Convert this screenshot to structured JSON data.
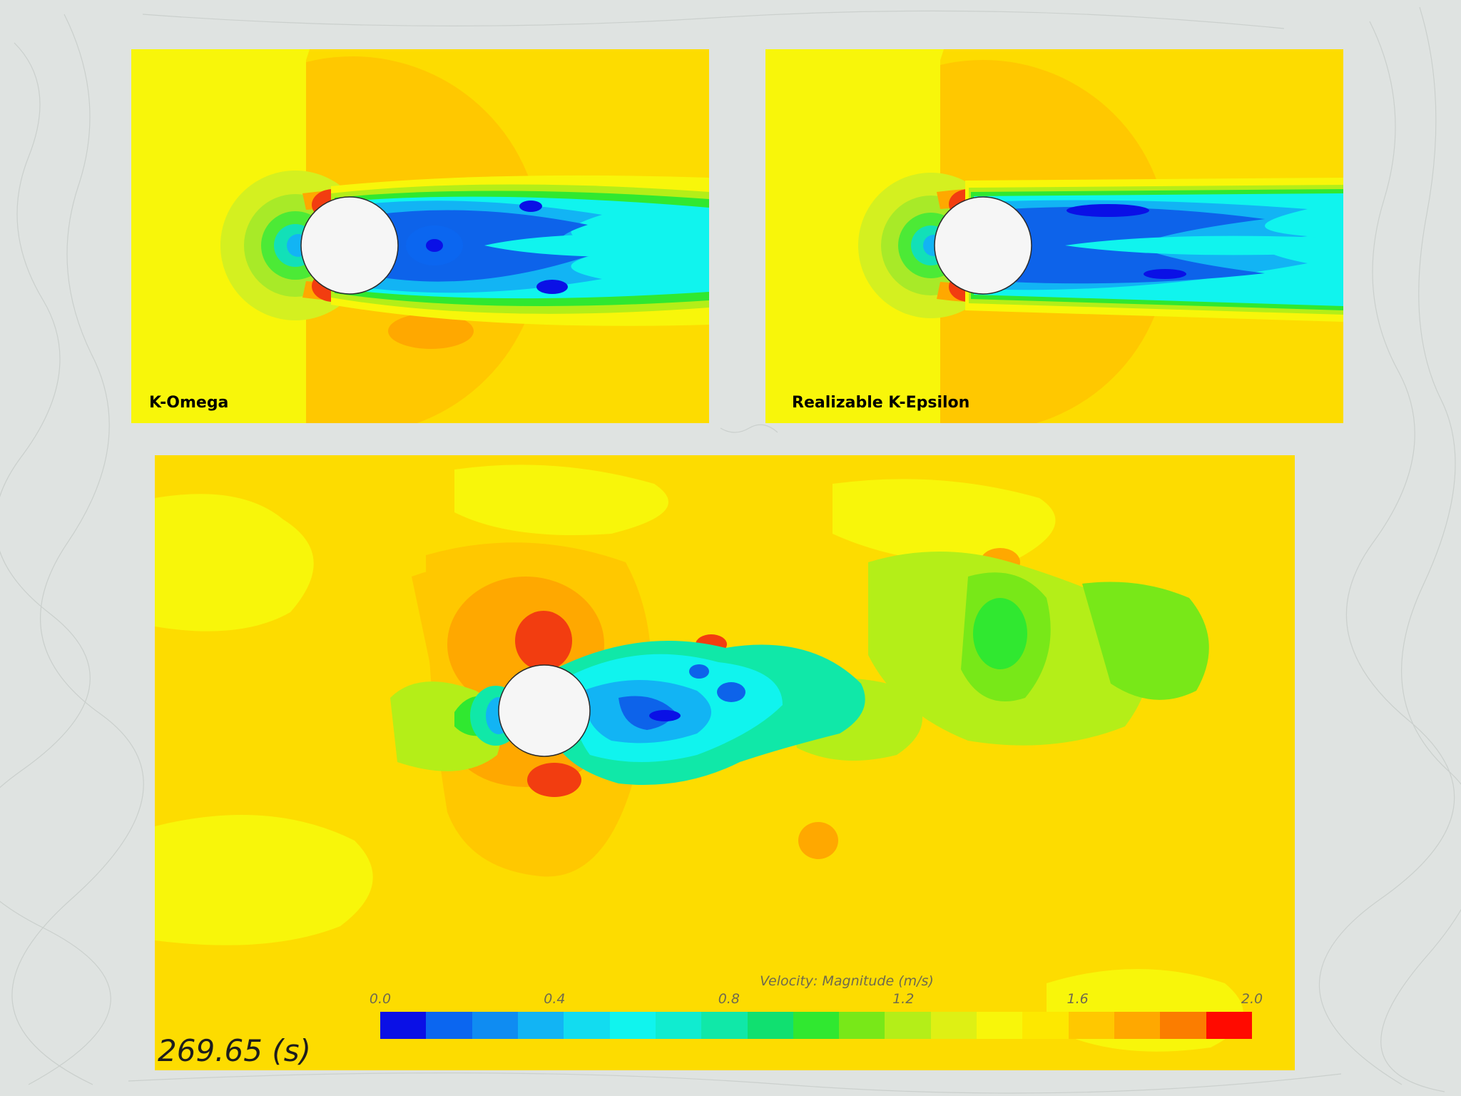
{
  "panels": {
    "top_left": {
      "label": "K-Omega"
    },
    "top_right": {
      "label": "Realizable K-Epsilon"
    }
  },
  "colorbar": {
    "title": "Velocity: Magnitude (m/s)",
    "ticks": [
      "0.0",
      "0.4",
      "0.8",
      "1.2",
      "1.6",
      "2.0"
    ],
    "range": [
      0.0,
      2.0
    ],
    "colors": [
      "#0a10e6",
      "#0b66f0",
      "#0f8cf2",
      "#12b4f4",
      "#12dcf0",
      "#10f4ee",
      "#10ecd0",
      "#10e8a8",
      "#10e070",
      "#30e830",
      "#78e818",
      "#b4ee18",
      "#def014",
      "#f8f60a",
      "#fde800",
      "#ffc800",
      "#ffa800",
      "#fb7d00",
      "#ff0a00"
    ]
  },
  "time_readout": "269.65 (s)",
  "palette": {
    "field": "#fddc00",
    "near_red": "#f23d10",
    "wake_blue": "#0d63ea",
    "cylinder": "#f6f6f6"
  }
}
